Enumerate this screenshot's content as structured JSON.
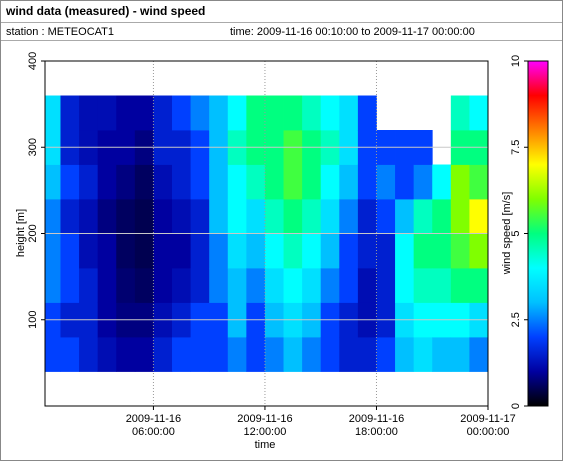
{
  "chart_data": {
    "type": "heatmap",
    "title": "wind data (measured) - wind speed",
    "annotations": [
      "station : METEOCAT1",
      "time: 2009-11-16 00:10:00 to 2009-11-17 00:00:00"
    ],
    "x_label": "time",
    "y_label": "height [m]",
    "colorbar_label": "wind speed [m/s]",
    "xlim": [
      "2009-11-16 00:10:00",
      "2009-11-17 00:00:00"
    ],
    "xticks": [
      "2009-11-16 06:00:00",
      "2009-11-16 12:00:00",
      "2009-11-16 18:00:00",
      "2009-11-17 00:00:00"
    ],
    "ylim": [
      0,
      400
    ],
    "yticks": [
      100,
      200,
      300,
      400
    ],
    "clim": [
      0,
      10
    ],
    "cticks": [
      0,
      2.5,
      5,
      7.5,
      10
    ],
    "colorscale": [
      "#000000",
      "#0000a0",
      "#0040ff",
      "#00c0ff",
      "#00ffff",
      "#00ff80",
      "#80ff00",
      "#ffff00",
      "#ff8000",
      "#ff0000",
      "#ff00ff"
    ],
    "grid": true,
    "xbins": [
      "2009-11-16 00:10:00",
      "2009-11-16 01:00:00",
      "2009-11-16 02:00:00",
      "2009-11-16 03:00:00",
      "2009-11-16 04:00:00",
      "2009-11-16 05:00:00",
      "2009-11-16 06:00:00",
      "2009-11-16 07:00:00",
      "2009-11-16 08:00:00",
      "2009-11-16 09:00:00",
      "2009-11-16 10:00:00",
      "2009-11-16 11:00:00",
      "2009-11-16 12:00:00",
      "2009-11-16 13:00:00",
      "2009-11-16 14:00:00",
      "2009-11-16 15:00:00",
      "2009-11-16 16:00:00",
      "2009-11-16 17:00:00",
      "2009-11-16 18:00:00",
      "2009-11-16 19:00:00",
      "2009-11-16 20:00:00",
      "2009-11-16 21:00:00",
      "2009-11-16 22:00:00",
      "2009-11-16 23:00:00",
      "2009-11-17 00:00:00"
    ],
    "ybins": [
      40,
      80,
      120,
      160,
      200,
      240,
      280,
      320,
      360
    ],
    "values": [
      [
        2,
        2,
        2.5,
        2.5,
        2.5,
        3,
        3.5,
        3.5
      ],
      [
        2,
        1.5,
        2,
        2,
        1.5,
        2,
        1.5,
        1.5
      ],
      [
        1.5,
        1.5,
        1.5,
        1.2,
        1.2,
        1.5,
        1.2,
        1.2
      ],
      [
        1.2,
        1,
        1,
        1,
        0.8,
        1,
        1,
        1.2
      ],
      [
        1,
        0.8,
        0.7,
        0.6,
        0.6,
        0.8,
        1,
        1
      ],
      [
        1,
        0.8,
        0.6,
        0.5,
        0.5,
        0.6,
        0.8,
        1
      ],
      [
        1.5,
        1.2,
        1,
        1,
        1,
        1.2,
        1.5,
        1.5
      ],
      [
        2,
        1.5,
        1.2,
        1,
        1.2,
        1.5,
        1.5,
        2
      ],
      [
        2,
        2,
        1.5,
        1.5,
        1.5,
        2,
        2,
        2.5
      ],
      [
        2,
        2,
        2.5,
        2.5,
        3,
        3,
        3,
        3
      ],
      [
        2.5,
        3,
        3,
        3.5,
        4,
        4,
        4.5,
        4
      ],
      [
        2,
        2,
        2.5,
        3,
        3.5,
        4.5,
        5,
        5
      ],
      [
        2.5,
        3,
        3.5,
        4,
        4.5,
        5,
        5,
        5
      ],
      [
        3,
        3.5,
        4,
        4.5,
        5,
        5.5,
        5.5,
        5
      ],
      [
        2.5,
        3,
        3.5,
        4,
        4.5,
        5,
        5,
        4.5
      ],
      [
        2,
        2,
        2.5,
        3,
        3.5,
        4,
        4.5,
        4
      ],
      [
        1.5,
        1.5,
        2,
        2,
        2.5,
        3,
        3.5,
        3.5
      ],
      [
        1.5,
        1.2,
        1.2,
        1.5,
        1.5,
        2,
        2,
        2
      ],
      [
        2,
        1.5,
        1.5,
        1.5,
        2,
        2.5,
        2,
        null
      ],
      [
        3,
        3.5,
        4,
        4,
        3,
        2,
        2,
        null
      ],
      [
        3.5,
        4,
        4.5,
        5,
        4.5,
        2.5,
        2,
        null
      ],
      [
        3,
        4,
        4.5,
        5,
        5,
        4,
        null,
        null
      ],
      [
        3,
        4,
        5,
        5.5,
        6,
        6,
        5,
        4.5
      ],
      [
        2.5,
        3.5,
        5,
        6,
        7,
        5.5,
        5,
        4
      ]
    ]
  }
}
